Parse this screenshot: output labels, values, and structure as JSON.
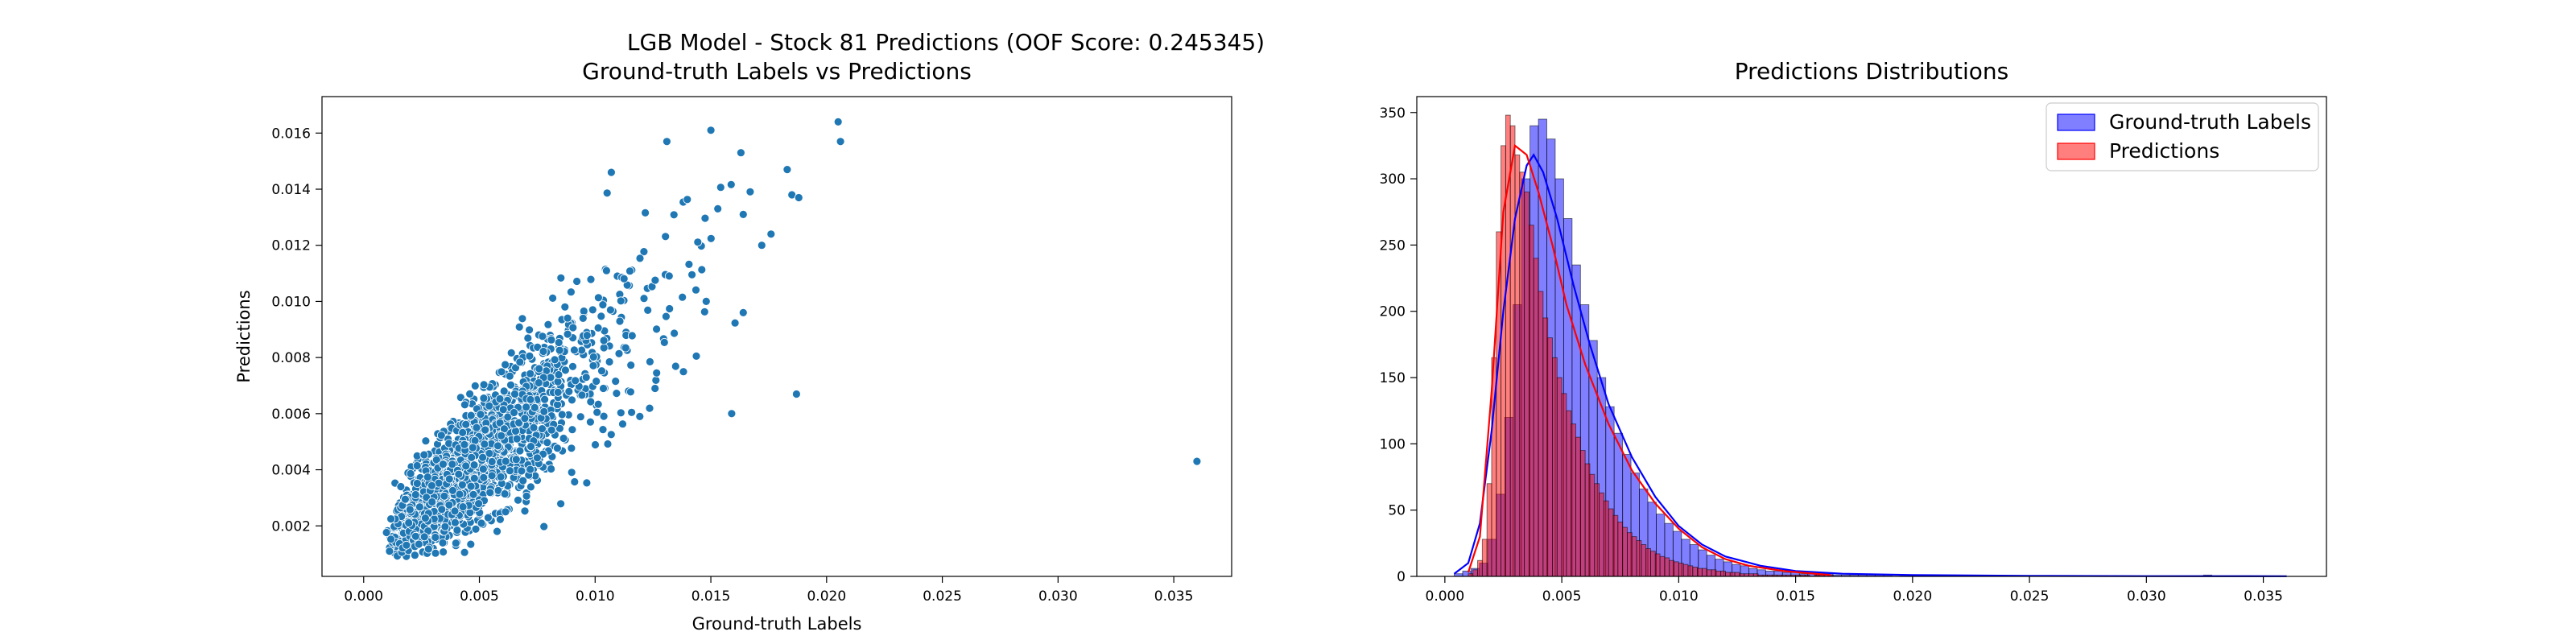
{
  "figure": {
    "suptitle": "LGB Model - Stock 81 Predictions (OOF Score: 0.245345)"
  },
  "chart_data": [
    {
      "type": "scatter",
      "title": "Ground-truth Labels vs Predictions",
      "xlabel": "Ground-truth Labels",
      "ylabel": "Predictions",
      "xlim": [
        -0.0018,
        0.0375
      ],
      "ylim": [
        0.0002,
        0.0173
      ],
      "xticks": [
        "0.000",
        "0.005",
        "0.010",
        "0.015",
        "0.020",
        "0.025",
        "0.030",
        "0.035"
      ],
      "yticks": [
        "0.002",
        "0.004",
        "0.006",
        "0.008",
        "0.010",
        "0.012",
        "0.014",
        "0.016"
      ],
      "color": "#1f77b4",
      "point_count": 2400,
      "density_note": "dense cloud roughly along y = 0.2 + 0.75x (in units of 1e-3 scaled), spread widening with x",
      "notable_points": [
        {
          "x": 0.036,
          "y": 0.0043
        },
        {
          "x": 0.0205,
          "y": 0.0164
        },
        {
          "x": 0.0206,
          "y": 0.0157
        },
        {
          "x": 0.0187,
          "y": 0.0067
        },
        {
          "x": 0.0159,
          "y": 0.006
        },
        {
          "x": 0.015,
          "y": 0.0161
        },
        {
          "x": 0.0163,
          "y": 0.0153
        },
        {
          "x": 0.0183,
          "y": 0.0147
        },
        {
          "x": 0.0185,
          "y": 0.0138
        },
        {
          "x": 0.0188,
          "y": 0.0137
        },
        {
          "x": 0.0131,
          "y": 0.0157
        },
        {
          "x": 0.0107,
          "y": 0.0146
        },
        {
          "x": 0.0176,
          "y": 0.0124
        },
        {
          "x": 0.0172,
          "y": 0.012
        },
        {
          "x": 0.0153,
          "y": 0.0133
        },
        {
          "x": 0.0164,
          "y": 0.0131
        },
        {
          "x": 0.0164,
          "y": 0.0096
        },
        {
          "x": 0.0148,
          "y": 0.01
        }
      ]
    },
    {
      "type": "bar",
      "title": "Predictions Distributions",
      "xlim": [
        -0.0012,
        0.0377
      ],
      "ylim": [
        0,
        362
      ],
      "xticks": [
        "0.000",
        "0.005",
        "0.010",
        "0.015",
        "0.020",
        "0.025",
        "0.030",
        "0.035"
      ],
      "yticks": [
        "0",
        "50",
        "100",
        "150",
        "200",
        "250",
        "300",
        "350"
      ],
      "legend": {
        "placement": "upper right"
      },
      "series": [
        {
          "name": "Ground-truth Labels",
          "color": "#0000ff",
          "bin_start": 0.0004,
          "bin_width": 0.00036,
          "values": [
            2,
            4,
            6,
            10,
            28,
            62,
            120,
            205,
            300,
            340,
            345,
            330,
            300,
            270,
            235,
            205,
            178,
            150,
            128,
            108,
            92,
            78,
            66,
            56,
            47,
            40,
            34,
            28,
            24,
            20,
            16,
            13,
            11,
            9,
            8,
            6,
            5,
            4,
            4,
            3,
            3,
            2,
            2,
            2,
            2,
            1,
            1,
            1,
            1,
            1,
            1,
            1,
            0,
            1,
            1,
            0,
            1,
            0,
            0,
            1,
            0,
            0,
            0,
            0,
            0,
            0,
            0,
            0,
            0,
            0,
            0,
            0,
            0,
            0,
            0,
            0,
            0,
            0,
            0,
            0,
            0,
            0,
            0,
            0,
            0,
            0,
            0,
            0,
            0,
            1
          ],
          "kde": [
            [
              0.0004,
              2
            ],
            [
              0.001,
              10
            ],
            [
              0.0015,
              40
            ],
            [
              0.002,
              110
            ],
            [
              0.0025,
              200
            ],
            [
              0.003,
              270
            ],
            [
              0.0035,
              310
            ],
            [
              0.0038,
              318
            ],
            [
              0.0042,
              305
            ],
            [
              0.0048,
              270
            ],
            [
              0.0055,
              220
            ],
            [
              0.0062,
              175
            ],
            [
              0.007,
              130
            ],
            [
              0.008,
              90
            ],
            [
              0.009,
              60
            ],
            [
              0.01,
              38
            ],
            [
              0.011,
              24
            ],
            [
              0.012,
              15
            ],
            [
              0.0135,
              8
            ],
            [
              0.015,
              4
            ],
            [
              0.017,
              2
            ],
            [
              0.02,
              1
            ],
            [
              0.025,
              0.4
            ],
            [
              0.03,
              0.2
            ],
            [
              0.036,
              0.1
            ]
          ]
        },
        {
          "name": "Predictions",
          "color": "#ff0000",
          "bin_start": 0.001,
          "bin_width": 0.0002,
          "values": [
            2,
            5,
            12,
            28,
            70,
            165,
            260,
            325,
            348,
            340,
            318,
            305,
            290,
            265,
            240,
            215,
            195,
            180,
            165,
            150,
            138,
            125,
            115,
            105,
            95,
            85,
            77,
            70,
            63,
            57,
            51,
            46,
            41,
            37,
            33,
            30,
            27,
            24,
            21,
            19,
            17,
            15,
            14,
            12,
            11,
            10,
            9,
            8,
            7,
            6,
            6,
            5,
            5,
            4,
            4,
            3,
            3,
            3,
            2,
            2,
            2,
            2,
            1,
            1,
            1,
            1,
            1,
            1,
            1,
            1,
            1,
            1,
            1,
            0,
            1,
            1,
            0,
            1
          ],
          "kde": [
            [
              0.001,
              3
            ],
            [
              0.0015,
              30
            ],
            [
              0.002,
              140
            ],
            [
              0.0025,
              275
            ],
            [
              0.003,
              325
            ],
            [
              0.0035,
              318
            ],
            [
              0.004,
              290
            ],
            [
              0.0046,
              250
            ],
            [
              0.0052,
              205
            ],
            [
              0.006,
              160
            ],
            [
              0.007,
              115
            ],
            [
              0.008,
              80
            ],
            [
              0.009,
              55
            ],
            [
              0.01,
              36
            ],
            [
              0.011,
              22
            ],
            [
              0.012,
              13
            ],
            [
              0.013,
              8
            ],
            [
              0.0145,
              4
            ],
            [
              0.0165,
              1
            ]
          ]
        }
      ]
    }
  ]
}
